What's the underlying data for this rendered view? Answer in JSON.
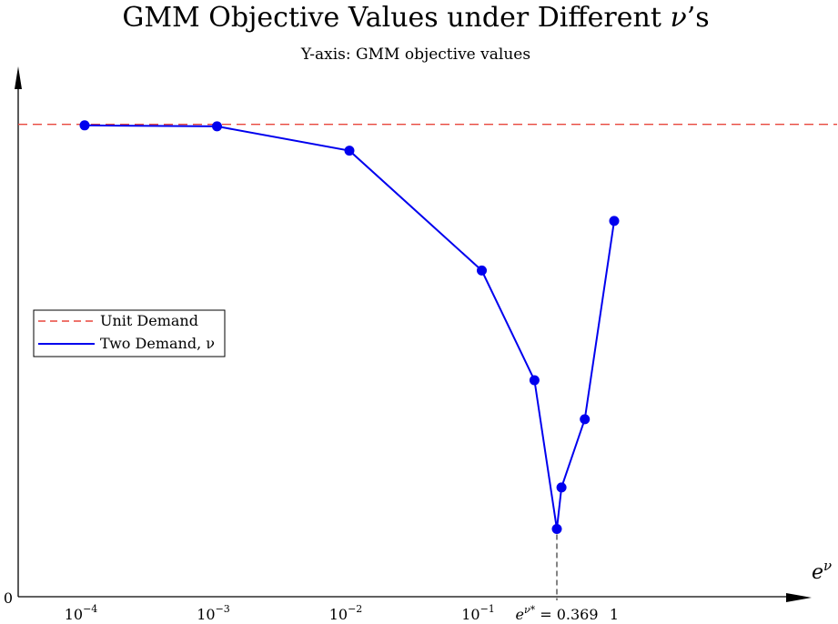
{
  "chart_data": {
    "type": "line",
    "title_prefix": "GMM Objective Values under Different ",
    "title_symbol": "ν",
    "title_suffix": "’s",
    "subtitle": "Y-axis: GMM objective values",
    "xlabel_base": "e",
    "xlabel_sup": "ν",
    "y_zero_label": "0",
    "xscale": "log",
    "x_ticks": [
      {
        "value": 0.0001,
        "base": "10",
        "exp": "−4"
      },
      {
        "value": 0.001,
        "base": "10",
        "exp": "−3"
      },
      {
        "value": 0.01,
        "base": "10",
        "exp": "−2"
      },
      {
        "value": 0.1,
        "base": "10",
        "exp": "−1"
      },
      {
        "value": 1,
        "base": "1",
        "exp": ""
      }
    ],
    "optimum": {
      "x": 0.369,
      "label_base": "e",
      "label_sup": "ν*",
      "label_rest": " = 0.369"
    },
    "ylim": [
      0,
      1
    ],
    "reference_line": {
      "name": "Unit Demand",
      "y": 0.934,
      "color": "#e8463c",
      "style": "dashed"
    },
    "series": [
      {
        "name": "Two Demand, ν",
        "color": "#0000ee",
        "x": [
          0.0001,
          0.001,
          0.01,
          0.1,
          0.25,
          0.369,
          0.4,
          0.6,
          1
        ],
        "y": [
          0.932,
          0.93,
          0.882,
          0.645,
          0.428,
          0.134,
          0.216,
          0.351,
          0.743
        ]
      }
    ],
    "legend_position": "middle-left",
    "grid": false
  }
}
